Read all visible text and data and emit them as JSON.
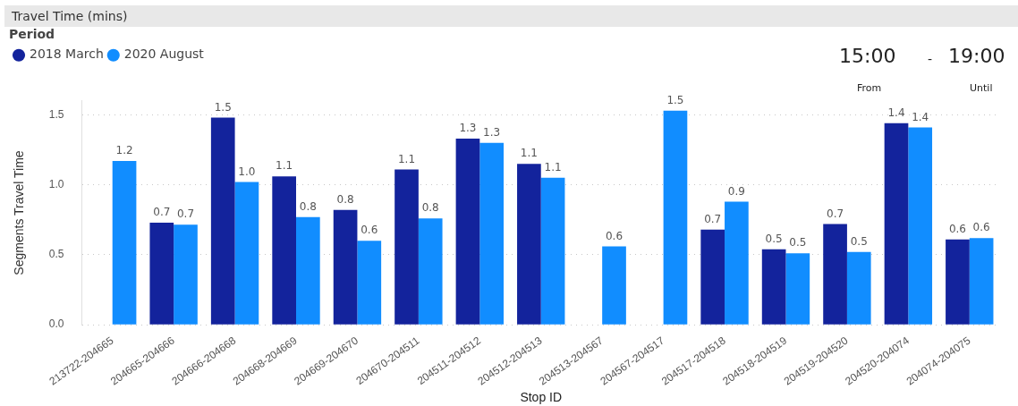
{
  "chart_data": {
    "type": "bar",
    "title": "Travel Time (mins)",
    "xlabel": "Stop ID",
    "ylabel": "Segments Travel Time",
    "legend_title": "Period",
    "legend": "top left",
    "grid": "y",
    "categories": [
      "213722-204665",
      "204665-204666",
      "204666-204668",
      "204668-204669",
      "204669-204670",
      "204670-204511",
      "204511-204512",
      "204512-204513",
      "204513-204567",
      "204567-204517",
      "204517-204518",
      "204518-204519",
      "204519-204520",
      "204520-204074",
      "204074-204075"
    ],
    "ylim": [
      0,
      1.6
    ],
    "yticks": [
      {
        "value": 0,
        "label": "0.0"
      },
      {
        "value": 0.5,
        "label": "0.5"
      },
      {
        "value": 1,
        "label": "1.0"
      },
      {
        "value": 1.5,
        "label": "1.5"
      }
    ],
    "series": [
      {
        "name": "2018 March",
        "color": "#13239c",
        "values": [
          null,
          0.73,
          1.48,
          1.06,
          0.82,
          1.11,
          1.33,
          1.15,
          null,
          null,
          0.68,
          0.54,
          0.72,
          1.44,
          0.61
        ],
        "value_labels": [
          null,
          "0.7",
          "1.5",
          "1.1",
          "0.8",
          "1.1",
          "1.3",
          "1.1",
          null,
          null,
          "0.7",
          "0.5",
          "0.7",
          "1.4",
          "0.6"
        ]
      },
      {
        "name": "2020 August",
        "color": "#118dff",
        "values": [
          1.17,
          0.715,
          1.02,
          0.77,
          0.6,
          0.76,
          1.3,
          1.05,
          0.56,
          1.53,
          0.88,
          0.51,
          0.52,
          1.41,
          0.62
        ],
        "value_labels": [
          "1.2",
          "0.7",
          "1.0",
          "0.8",
          "0.6",
          "0.8",
          "1.3",
          "1.1",
          "0.6",
          "1.5",
          "0.9",
          "0.5",
          "0.5",
          "1.4",
          "0.6"
        ]
      }
    ],
    "annotations": [
      "15:00",
      "-",
      "19:00",
      "From",
      "Until"
    ]
  }
}
